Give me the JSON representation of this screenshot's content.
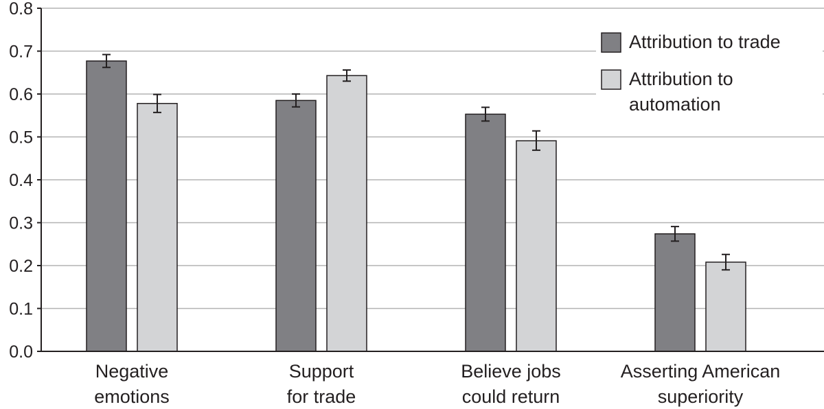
{
  "chart_data": {
    "type": "bar",
    "categories": [
      [
        "Negative",
        "emotions"
      ],
      [
        "Support",
        "for trade"
      ],
      [
        "Believe jobs",
        "could return"
      ],
      [
        "Asserting American",
        "superiority"
      ]
    ],
    "series": [
      {
        "name": [
          "Attribution to trade"
        ],
        "color": "#808084",
        "values": [
          0.677,
          0.585,
          0.553,
          0.274
        ],
        "error": [
          [
            0.662,
            0.692
          ],
          [
            0.57,
            0.6
          ],
          [
            0.537,
            0.569
          ],
          [
            0.257,
            0.291
          ]
        ]
      },
      {
        "name": [
          "Attribution to",
          "automation"
        ],
        "color": "#d3d4d6",
        "values": [
          0.578,
          0.643,
          0.491,
          0.208
        ],
        "error": [
          [
            0.557,
            0.599
          ],
          [
            0.63,
            0.656
          ],
          [
            0.469,
            0.514
          ],
          [
            0.19,
            0.226
          ]
        ]
      }
    ],
    "ylim": [
      0,
      0.8
    ],
    "yticks": [
      "0.0",
      "0.1",
      "0.2",
      "0.3",
      "0.4",
      "0.5",
      "0.6",
      "0.7",
      "0.8"
    ],
    "grid": true,
    "legend_position": "top-right",
    "title": "",
    "xlabel": "",
    "ylabel": ""
  }
}
